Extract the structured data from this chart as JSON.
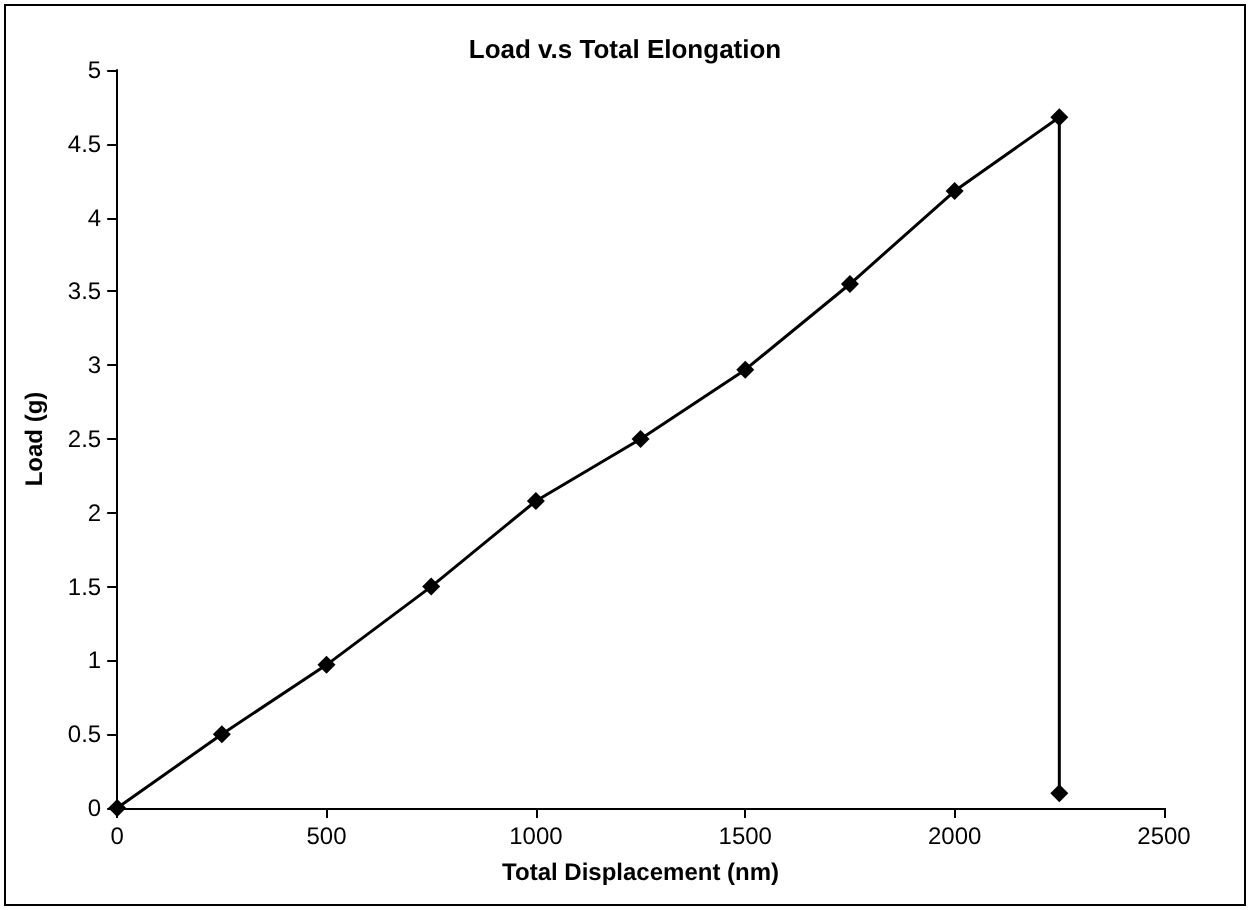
{
  "chart_data": {
    "type": "line",
    "title": "Load v.s Total Elongation",
    "xlabel": "Total Displacement (nm)",
    "ylabel": "Load (g)",
    "x": [
      0,
      250,
      500,
      750,
      1000,
      1250,
      1500,
      1750,
      2000,
      2250,
      2250
    ],
    "series": [
      {
        "color": "#000000",
        "values": [
          0,
          0.5,
          0.97,
          1.5,
          2.08,
          2.5,
          2.97,
          3.55,
          4.18,
          4.68,
          0.1
        ]
      }
    ],
    "xlim": [
      0,
      2500
    ],
    "xticks": [
      0,
      500,
      1000,
      1500,
      2000,
      2500
    ],
    "ylim": [
      0,
      5
    ],
    "yticks": [
      0,
      0.5,
      1,
      1.5,
      2,
      2.5,
      3,
      3.5,
      4,
      4.5,
      5
    ],
    "grid": false,
    "marker": "diamond",
    "line_style": "solid"
  }
}
